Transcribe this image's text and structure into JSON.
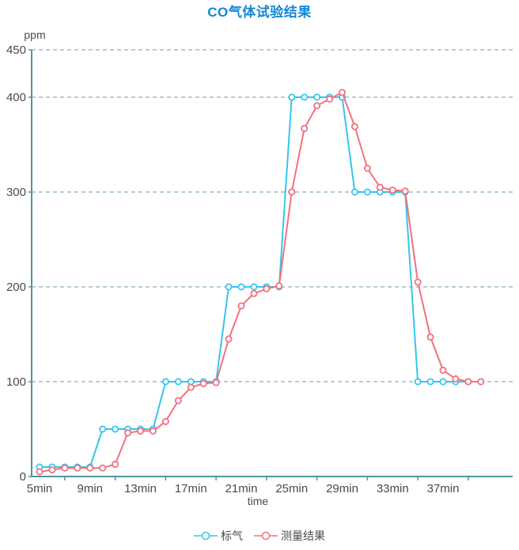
{
  "chart_data": {
    "type": "line",
    "title": "CO气体试验结果",
    "ylabel": "ppm",
    "xlabel": "time",
    "x_unit": "min",
    "x": [
      5,
      6,
      7,
      8,
      9,
      10,
      11,
      12,
      13,
      14,
      15,
      16,
      17,
      18,
      19,
      20,
      21,
      22,
      23,
      24,
      25,
      26,
      27,
      28,
      29,
      30,
      31,
      32,
      33,
      34,
      35,
      36,
      37,
      38,
      39,
      40
    ],
    "x_label_values": [
      5,
      9,
      13,
      17,
      21,
      25,
      29,
      33,
      37
    ],
    "x_tick_labels": [
      "5min",
      "9min",
      "13min",
      "17min",
      "21min",
      "25min",
      "29min",
      "33min",
      "37min"
    ],
    "x_minor_tick_values": [
      7,
      11,
      15,
      19,
      23,
      27,
      31,
      35,
      39
    ],
    "ylim": [
      0,
      450
    ],
    "y_ticks": [
      0,
      100,
      200,
      300,
      400,
      450
    ],
    "grid": "horizontal-dashed",
    "legend_position": "bottom",
    "series": [
      {
        "name": "标气",
        "color": "#35c5ee",
        "values": [
          10,
          10,
          10,
          10,
          10,
          50,
          50,
          50,
          50,
          50,
          100,
          100,
          100,
          100,
          100,
          200,
          200,
          200,
          200,
          200,
          400,
          400,
          400,
          400,
          400,
          300,
          300,
          300,
          300,
          300,
          100,
          100,
          100,
          100,
          100,
          100
        ]
      },
      {
        "name": "测量结果",
        "color": "#f2717e",
        "values": [
          5,
          7,
          9,
          9,
          9,
          9,
          13,
          46,
          48,
          48,
          58,
          80,
          94,
          98,
          99,
          145,
          180,
          193,
          198,
          201,
          300,
          367,
          391,
          398,
          405,
          369,
          325,
          305,
          302,
          301,
          205,
          147,
          112,
          103,
          100,
          100
        ]
      }
    ],
    "colors": {
      "title": "#1287d6",
      "axis": "#4e96a0",
      "grid": "#9cbec3",
      "text": "#4a4a4a"
    }
  }
}
